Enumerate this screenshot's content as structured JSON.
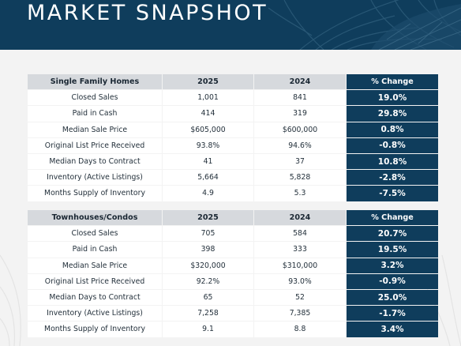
{
  "header": {
    "title": "MARKET SNAPSHOT"
  },
  "colors": {
    "navy": "#0f3d5c",
    "header_row": "#d6d9dd",
    "row": "#ffffff"
  },
  "tables": [
    {
      "headers": [
        "Single Family Homes",
        "2025",
        "2024",
        "% Change"
      ],
      "rows": [
        [
          "Closed Sales",
          "1,001",
          "841",
          "19.0%"
        ],
        [
          "Paid in Cash",
          "414",
          "319",
          "29.8%"
        ],
        [
          "Median Sale Price",
          "$605,000",
          "$600,000",
          "0.8%"
        ],
        [
          "Original List Price Received",
          "93.8%",
          "94.6%",
          "-0.8%"
        ],
        [
          "Median Days to Contract",
          "41",
          "37",
          "10.8%"
        ],
        [
          "Inventory (Active Listings)",
          "5,664",
          "5,828",
          "-2.8%"
        ],
        [
          "Months Supply of Inventory",
          "4.9",
          "5.3",
          "-7.5%"
        ]
      ]
    },
    {
      "headers": [
        "Townhouses/Condos",
        "2025",
        "2024",
        "% Change"
      ],
      "rows": [
        [
          "Closed Sales",
          "705",
          "584",
          "20.7%"
        ],
        [
          "Paid in Cash",
          "398",
          "333",
          "19.5%"
        ],
        [
          "Median Sale Price",
          "$320,000",
          "$310,000",
          "3.2%"
        ],
        [
          "Original List Price Received",
          "92.2%",
          "93.0%",
          "-0.9%"
        ],
        [
          "Median Days to Contract",
          "65",
          "52",
          "25.0%"
        ],
        [
          "Inventory (Active Listings)",
          "7,258",
          "7,385",
          "-1.7%"
        ],
        [
          "Months Supply of Inventory",
          "9.1",
          "8.8",
          "3.4%"
        ]
      ]
    }
  ]
}
